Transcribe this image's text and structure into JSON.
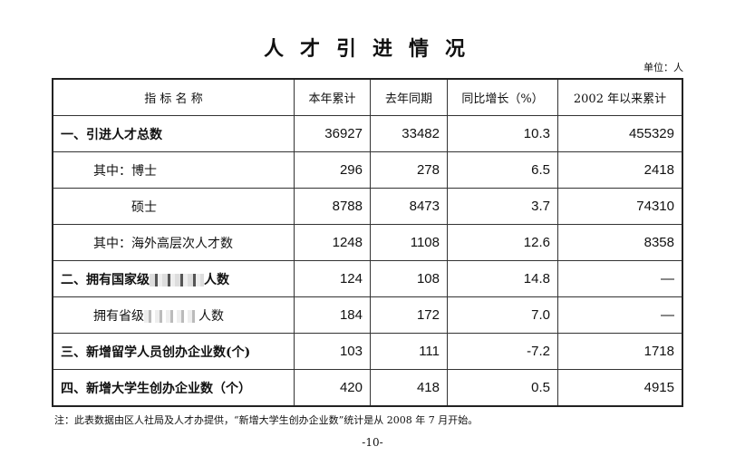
{
  "title": "人才引进情况",
  "unit": "单位：人",
  "headers": [
    "指 标 名 称",
    "本年累计",
    "去年同期",
    "同比增长（%）",
    "2002 年以来累计"
  ],
  "rows": [
    {
      "label": "一、引进人才总数",
      "values": [
        "36927",
        "33482",
        "10.3",
        "455329"
      ]
    },
    {
      "label": "其中：博士",
      "values": [
        "296",
        "278",
        "6.5",
        "2418"
      ]
    },
    {
      "label": "硕士",
      "values": [
        "8788",
        "8473",
        "3.7",
        "74310"
      ]
    },
    {
      "label": "其中：海外高层次人才数",
      "values": [
        "1248",
        "1108",
        "12.6",
        "8358"
      ]
    },
    {
      "label_pre": "二、拥有国家级",
      "label_post": "人数",
      "values": [
        "124",
        "108",
        "14.8",
        "—"
      ]
    },
    {
      "label_pre": "拥有省级",
      "label_post": "人数",
      "values": [
        "184",
        "172",
        "7.0",
        "—"
      ]
    },
    {
      "label": "三、新增留学人员创办企业数(个)",
      "values": [
        "103",
        "111",
        "-7.2",
        "1718"
      ]
    },
    {
      "label": "四、新增大学生创办企业数（个）",
      "values": [
        "420",
        "418",
        "0.5",
        "4915"
      ]
    }
  ],
  "note": "注：此表数据由区人社局及人才办提供，“新增大学生创办企业数”统计是从 2008 年 7 月开始。",
  "page_number": "-10-"
}
